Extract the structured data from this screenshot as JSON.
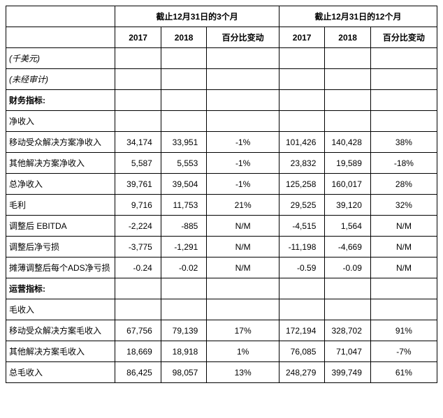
{
  "header": {
    "group3m": "截止12月31日的3个月",
    "group12m": "截止12月31日的12个月",
    "y2017": "2017",
    "y2018": "2018",
    "pct": "百分比变动"
  },
  "rows": [
    {
      "label": "(千美元)",
      "style": "italic"
    },
    {
      "label": "(未经审计)",
      "style": "italic"
    },
    {
      "label": "财务指标:",
      "style": "bold"
    },
    {
      "label": "净收入",
      "style": ""
    },
    {
      "label": "移动受众解决方案净收入",
      "v": [
        "34,174",
        "33,951",
        "-1%",
        "101,426",
        "140,428",
        "38%"
      ]
    },
    {
      "label": "其他解决方案净收入",
      "v": [
        "5,587",
        "5,553",
        "-1%",
        "23,832",
        "19,589",
        "-18%"
      ]
    },
    {
      "label": "总净收入",
      "v": [
        "39,761",
        "39,504",
        "-1%",
        "125,258",
        "160,017",
        "28%"
      ]
    },
    {
      "label": "毛利",
      "v": [
        "9,716",
        "11,753",
        "21%",
        "29,525",
        "39,120",
        "32%"
      ]
    },
    {
      "label": "调整后 EBITDA",
      "v": [
        "-2,224",
        "-885",
        "N/M",
        "-4,515",
        "1,564",
        "N/M"
      ]
    },
    {
      "label": "调整后净亏损",
      "v": [
        "-3,775",
        "-1,291",
        "N/M",
        "-11,198",
        "-4,669",
        "N/M"
      ]
    },
    {
      "label": "摊薄调整后每个ADS净亏损",
      "v": [
        "-0.24",
        "-0.02",
        "N/M",
        "-0.59",
        "-0.09",
        "N/M"
      ]
    },
    {
      "label": "运营指标:",
      "style": "bold"
    },
    {
      "label": "毛收入",
      "style": ""
    },
    {
      "label": "移动受众解决方案毛收入",
      "v": [
        "67,756",
        "79,139",
        "17%",
        "172,194",
        "328,702",
        "91%"
      ]
    },
    {
      "label": "其他解决方案毛收入",
      "v": [
        "18,669",
        "18,918",
        "1%",
        "76,085",
        "71,047",
        "-7%"
      ]
    },
    {
      "label": "总毛收入",
      "v": [
        "86,425",
        "98,057",
        "13%",
        "248,279",
        "399,749",
        "61%"
      ]
    }
  ]
}
